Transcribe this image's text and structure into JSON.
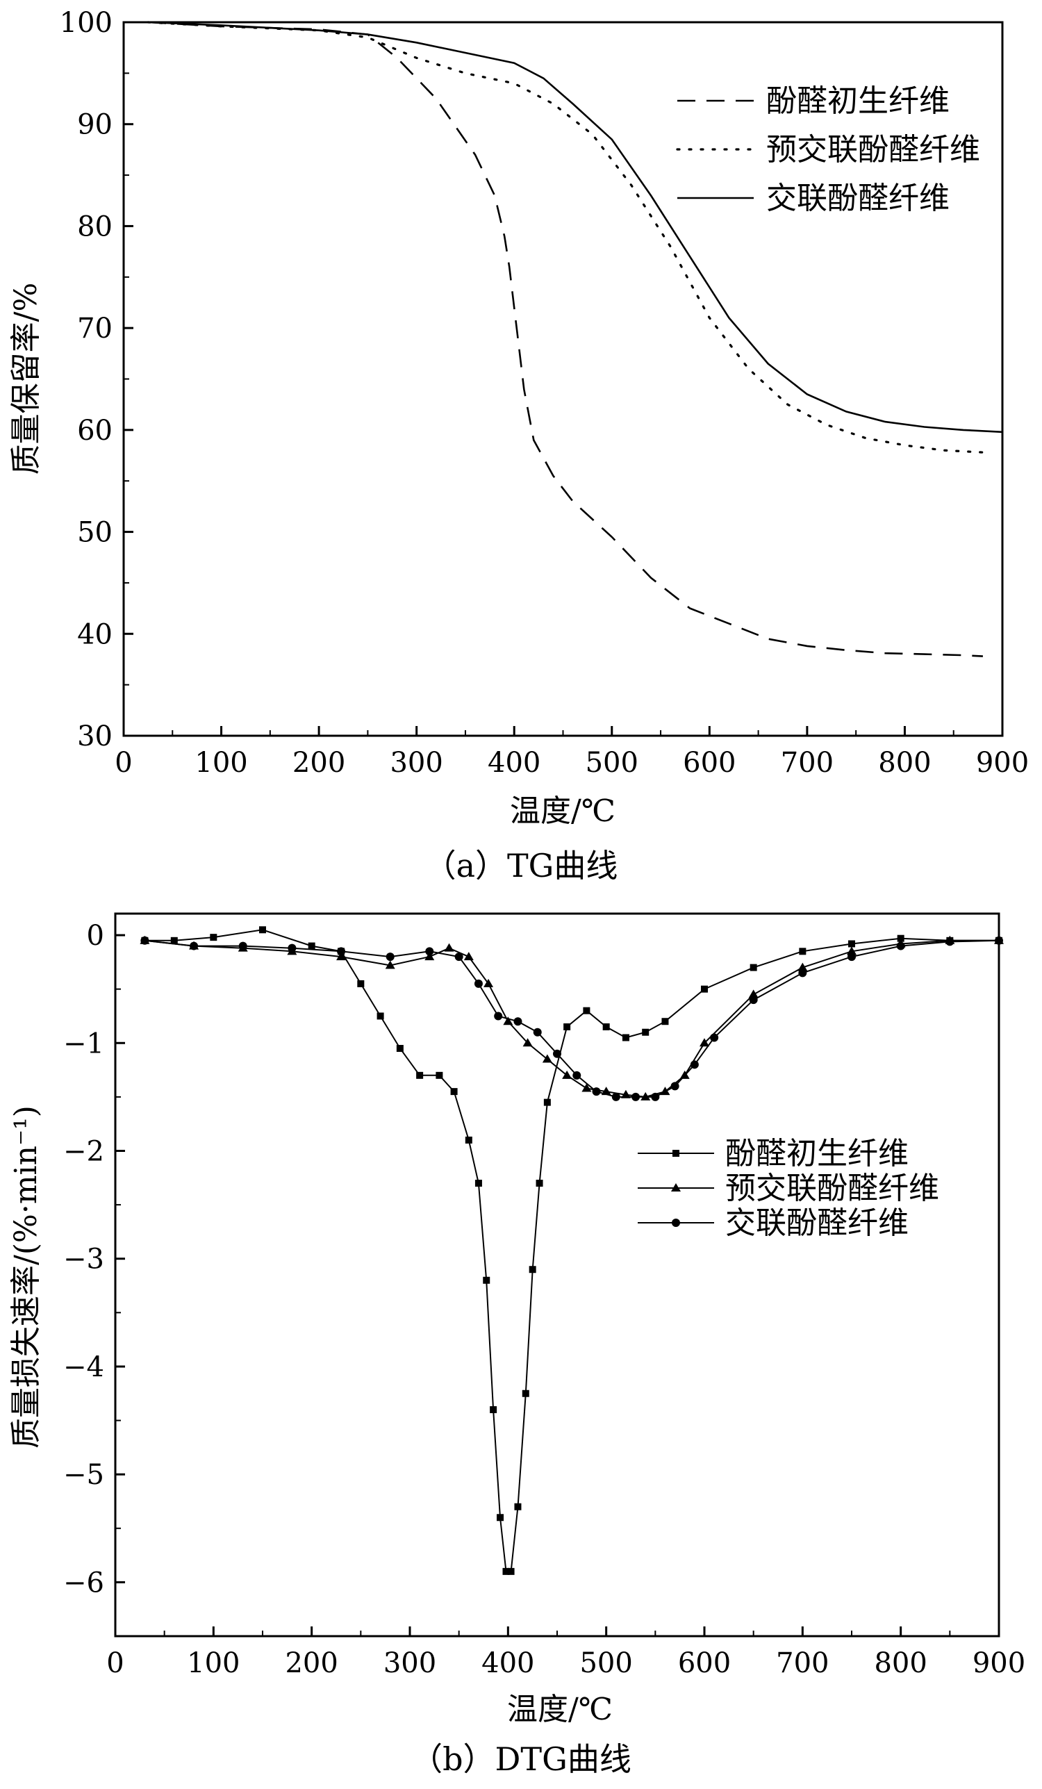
{
  "chart_data": [
    {
      "type": "line",
      "caption": "（a）TG曲线",
      "xlabel": "温度/℃",
      "ylabel": "质量保留率/%",
      "xlim": [
        0,
        900
      ],
      "ylim": [
        30,
        100
      ],
      "xticks": [
        "0",
        "100",
        "200",
        "300",
        "400",
        "500",
        "600",
        "700",
        "800",
        "900"
      ],
      "yticks": [
        "30",
        "40",
        "50",
        "60",
        "70",
        "80",
        "90",
        "100"
      ],
      "legend_position": "top-right",
      "series": [
        {
          "name": "酚醛初生纤维",
          "style": "dashed",
          "x": [
            25,
            100,
            200,
            250,
            280,
            320,
            360,
            380,
            390,
            395,
            400,
            405,
            410,
            420,
            440,
            460,
            500,
            540,
            580,
            620,
            660,
            700,
            740,
            780,
            820,
            860,
            880
          ],
          "y": [
            100,
            99.6,
            99.3,
            98.8,
            96.5,
            92.5,
            87,
            83,
            79,
            76,
            72,
            68,
            64,
            59,
            55.5,
            53,
            49.5,
            45.5,
            42.5,
            41,
            39.5,
            38.8,
            38.4,
            38.1,
            38,
            37.9,
            37.8
          ]
        },
        {
          "name": "预交联酚醛纤维",
          "style": "dotted",
          "x": [
            25,
            100,
            150,
            200,
            250,
            300,
            350,
            400,
            440,
            480,
            520,
            560,
            600,
            640,
            680,
            720,
            760,
            800,
            840,
            880
          ],
          "y": [
            100,
            99.6,
            99.4,
            99.2,
            98.5,
            96.5,
            95,
            94,
            92,
            89,
            84,
            78,
            71,
            66,
            62.5,
            60.5,
            59.2,
            58.5,
            58,
            57.8
          ]
        },
        {
          "name": "交联酚醛纤维",
          "style": "solid",
          "x": [
            25,
            100,
            200,
            250,
            300,
            350,
            400,
            430,
            460,
            500,
            540,
            580,
            620,
            660,
            700,
            740,
            780,
            820,
            860,
            900
          ],
          "y": [
            100,
            99.7,
            99.2,
            98.8,
            98,
            97,
            96,
            94.5,
            92,
            88.5,
            83,
            77,
            71,
            66.5,
            63.5,
            61.8,
            60.8,
            60.3,
            60,
            59.8
          ]
        }
      ]
    },
    {
      "type": "line",
      "caption": "（b）DTG曲线",
      "xlabel": "温度/℃",
      "ylabel": "质量损失速率/(%·min⁻¹)",
      "xlim": [
        0,
        900
      ],
      "ylim": [
        -6.5,
        0.2
      ],
      "xticks": [
        "0",
        "100",
        "200",
        "300",
        "400",
        "500",
        "600",
        "700",
        "800",
        "900"
      ],
      "yticks": [
        "0",
        "−1",
        "−2",
        "−3",
        "−4",
        "−5",
        "−6"
      ],
      "legend_position": "center-right",
      "series": [
        {
          "name": "酚醛初生纤维",
          "marker": "square",
          "x": [
            30,
            60,
            100,
            150,
            200,
            230,
            250,
            270,
            290,
            310,
            330,
            345,
            360,
            370,
            378,
            385,
            392,
            398,
            403,
            410,
            418,
            425,
            432,
            440,
            460,
            480,
            500,
            520,
            540,
            560,
            600,
            650,
            700,
            750,
            800,
            850,
            900
          ],
          "y": [
            -0.05,
            -0.05,
            -0.02,
            0.05,
            -0.1,
            -0.15,
            -0.45,
            -0.75,
            -1.05,
            -1.3,
            -1.3,
            -1.45,
            -1.9,
            -2.3,
            -3.2,
            -4.4,
            -5.4,
            -5.9,
            -5.9,
            -5.3,
            -4.25,
            -3.1,
            -2.3,
            -1.55,
            -0.85,
            -0.7,
            -0.85,
            -0.95,
            -0.9,
            -0.8,
            -0.5,
            -0.3,
            -0.15,
            -0.08,
            -0.03,
            -0.05,
            -0.05
          ]
        },
        {
          "name": "预交联酚醛纤维",
          "marker": "triangle",
          "x": [
            30,
            80,
            130,
            180,
            230,
            280,
            320,
            340,
            360,
            380,
            400,
            420,
            440,
            460,
            480,
            500,
            520,
            540,
            560,
            580,
            600,
            650,
            700,
            750,
            800,
            850,
            900
          ],
          "y": [
            -0.05,
            -0.1,
            -0.12,
            -0.15,
            -0.2,
            -0.28,
            -0.2,
            -0.12,
            -0.2,
            -0.45,
            -0.8,
            -1.0,
            -1.15,
            -1.3,
            -1.42,
            -1.45,
            -1.48,
            -1.5,
            -1.45,
            -1.3,
            -1.0,
            -0.55,
            -0.3,
            -0.15,
            -0.08,
            -0.05,
            -0.05
          ]
        },
        {
          "name": "交联酚醛纤维",
          "marker": "circle",
          "x": [
            30,
            80,
            130,
            180,
            230,
            280,
            320,
            350,
            370,
            390,
            410,
            430,
            450,
            470,
            490,
            510,
            530,
            550,
            570,
            590,
            610,
            650,
            700,
            750,
            800,
            850,
            900
          ],
          "y": [
            -0.05,
            -0.1,
            -0.1,
            -0.12,
            -0.15,
            -0.2,
            -0.15,
            -0.2,
            -0.45,
            -0.75,
            -0.8,
            -0.9,
            -1.1,
            -1.3,
            -1.45,
            -1.5,
            -1.5,
            -1.5,
            -1.4,
            -1.2,
            -0.95,
            -0.6,
            -0.35,
            -0.2,
            -0.1,
            -0.06,
            -0.05
          ]
        }
      ]
    }
  ]
}
